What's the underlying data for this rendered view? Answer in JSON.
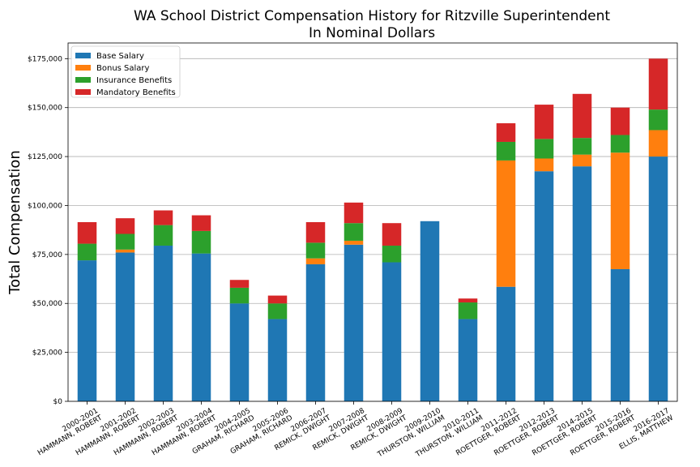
{
  "chart_data": {
    "type": "bar",
    "stacked": true,
    "title": "WA School District Compensation History for Ritzville Superintendent",
    "subtitle": "In Nominal Dollars",
    "xlabel": "",
    "ylabel": "Total Compensation",
    "ylim": [
      0,
      183000
    ],
    "yticks": [
      0,
      25000,
      50000,
      75000,
      100000,
      125000,
      150000,
      175000
    ],
    "ytick_labels": [
      "$0",
      "$25,000",
      "$50,000",
      "$75,000",
      "$100,000",
      "$125,000",
      "$150,000",
      "$175,000"
    ],
    "grid": "horizontal",
    "legend_position": "top-left",
    "categories": [
      [
        "2000-2001",
        "HAMMANN, ROBERT"
      ],
      [
        "2001-2002",
        "HAMMANN, ROBERT"
      ],
      [
        "2002-2003",
        "HAMMANN, ROBERT"
      ],
      [
        "2003-2004",
        "HAMMANN, ROBERT"
      ],
      [
        "2004-2005",
        "GRAHAM, RICHARD"
      ],
      [
        "2005-2006",
        "GRAHAM, RICHARD"
      ],
      [
        "2006-2007",
        "REMICK, DWIGHT"
      ],
      [
        "2007-2008",
        "REMICK, DWIGHT"
      ],
      [
        "2008-2009",
        "REMICK, DWIGHT"
      ],
      [
        "2009-2010",
        "THURSTON, WILLIAM"
      ],
      [
        "2010-2011",
        "THURSTON, WILLIAM"
      ],
      [
        "2011-2012",
        "ROETTGER, ROBERT"
      ],
      [
        "2012-2013",
        "ROETTGER, ROBERT"
      ],
      [
        "2014-2015",
        "ROETTGER, ROBERT"
      ],
      [
        "2015-2016",
        "ROETTGER, ROBERT"
      ],
      [
        "2016-2017",
        "ELLIS, MATTHEW"
      ]
    ],
    "series": [
      {
        "name": "Base Salary",
        "color": "#1f77b4",
        "values": [
          72000,
          76000,
          79500,
          75500,
          50000,
          42000,
          70000,
          80000,
          71000,
          92000,
          42000,
          58500,
          117500,
          120000,
          67500,
          125000
        ]
      },
      {
        "name": "Bonus Salary",
        "color": "#ff7f0e",
        "values": [
          0,
          1500,
          0,
          0,
          0,
          0,
          3000,
          2000,
          0,
          0,
          0,
          64500,
          6500,
          6000,
          59500,
          13500
        ]
      },
      {
        "name": "Insurance Benefits",
        "color": "#2ca02c",
        "values": [
          8500,
          8000,
          10500,
          11500,
          8000,
          8000,
          8000,
          9000,
          8500,
          0,
          8500,
          9500,
          10000,
          8500,
          9000,
          10500
        ]
      },
      {
        "name": "Mandatory Benefits",
        "color": "#d62728",
        "values": [
          11000,
          8000,
          7500,
          8000,
          4000,
          4000,
          10500,
          10500,
          11500,
          0,
          2000,
          9500,
          17500,
          22500,
          14000,
          26000
        ]
      }
    ]
  }
}
